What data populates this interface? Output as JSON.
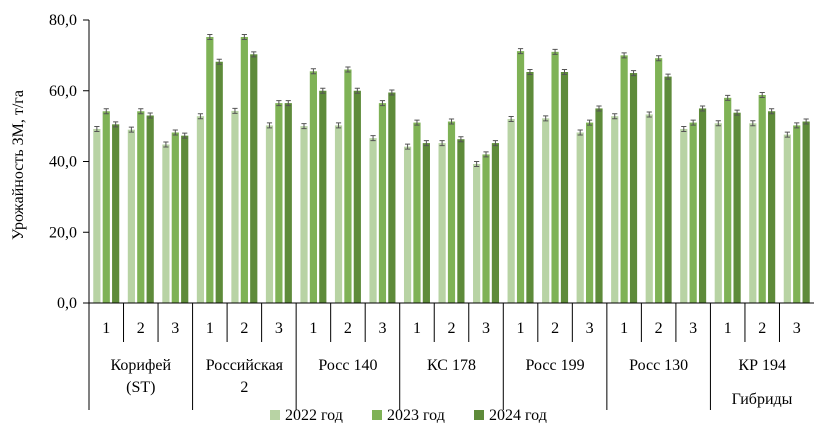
{
  "chart_data": {
    "type": "bar",
    "title": "",
    "xlabel": "Гибриды",
    "ylabel": "Урожайность ЗМ, т/га",
    "ylim": [
      0,
      80
    ],
    "yticks": [
      "0,0",
      "20,0",
      "40,0",
      "60,0",
      "80,0"
    ],
    "grid": false,
    "legend_position": "bottom",
    "groups": [
      {
        "label_lines": [
          "Корифей",
          "(ST)"
        ]
      },
      {
        "label_lines": [
          "Российская",
          "2"
        ]
      },
      {
        "label_lines": [
          "Росс 140"
        ]
      },
      {
        "label_lines": [
          "КС 178"
        ]
      },
      {
        "label_lines": [
          "Росс 199"
        ]
      },
      {
        "label_lines": [
          "Росс 130"
        ]
      },
      {
        "label_lines": [
          "КР 194"
        ]
      }
    ],
    "subcategories": [
      "1",
      "2",
      "3"
    ],
    "series": [
      {
        "name": "2022 год",
        "color": "#b8d3a4",
        "values": [
          49.2,
          49.0,
          44.8,
          52.8,
          54.3,
          50.2,
          50.0,
          50.2,
          46.6,
          44.2,
          45.2,
          39.3,
          52.0,
          52.2,
          48.2,
          52.8,
          53.3,
          49.2,
          50.8,
          50.8,
          47.6
        ]
      },
      {
        "name": "2023 год",
        "color": "#7fb256",
        "values": [
          54.2,
          54.2,
          48.2,
          75.2,
          75.2,
          56.5,
          65.5,
          66.0,
          56.5,
          51.0,
          51.3,
          42.0,
          71.2,
          71.0,
          51.0,
          70.0,
          69.2,
          51.0,
          58.0,
          58.8,
          50.2
        ]
      },
      {
        "name": "2024 год",
        "color": "#5e8b3a",
        "values": [
          50.5,
          53.0,
          47.3,
          68.2,
          70.3,
          56.5,
          60.0,
          60.0,
          59.5,
          45.2,
          46.3,
          45.2,
          65.3,
          65.3,
          55.0,
          65.0,
          64.0,
          55.0,
          53.8,
          54.2,
          51.3
        ]
      }
    ],
    "error_bars": true
  }
}
